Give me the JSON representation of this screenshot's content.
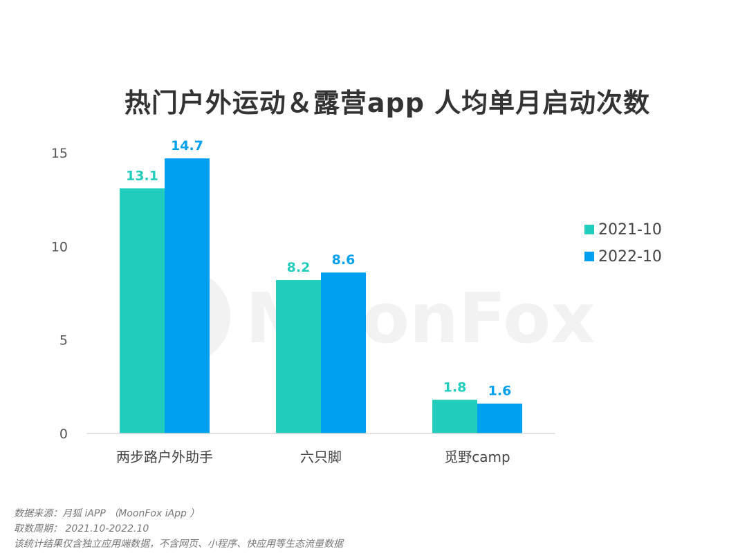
{
  "chart_data": {
    "type": "bar",
    "title": "热门户外运动＆露营app 人均单月启动次数",
    "categories": [
      "两步路户外助手",
      "六只脚",
      "觅野camp"
    ],
    "series": [
      {
        "name": "2021-10",
        "values": [
          13.1,
          8.2,
          1.8
        ],
        "color": "#22CDBC"
      },
      {
        "name": "2022-10",
        "values": [
          14.7,
          8.6,
          1.6
        ],
        "color": "#00A0F0"
      }
    ],
    "yticks": [
      0,
      5,
      10,
      15
    ],
    "ylim": [
      0,
      15
    ],
    "grid": false,
    "legend_position": "right",
    "watermark": "MoonFox"
  },
  "footer": {
    "source": "数据来源：月狐 iAPP （MoonFox iApp ）",
    "period": "取数周期： 2021.10-2022.10",
    "note": "该统计结果仅含独立应用端数据，不含网页、小程序、快应用等生态流量数据"
  }
}
